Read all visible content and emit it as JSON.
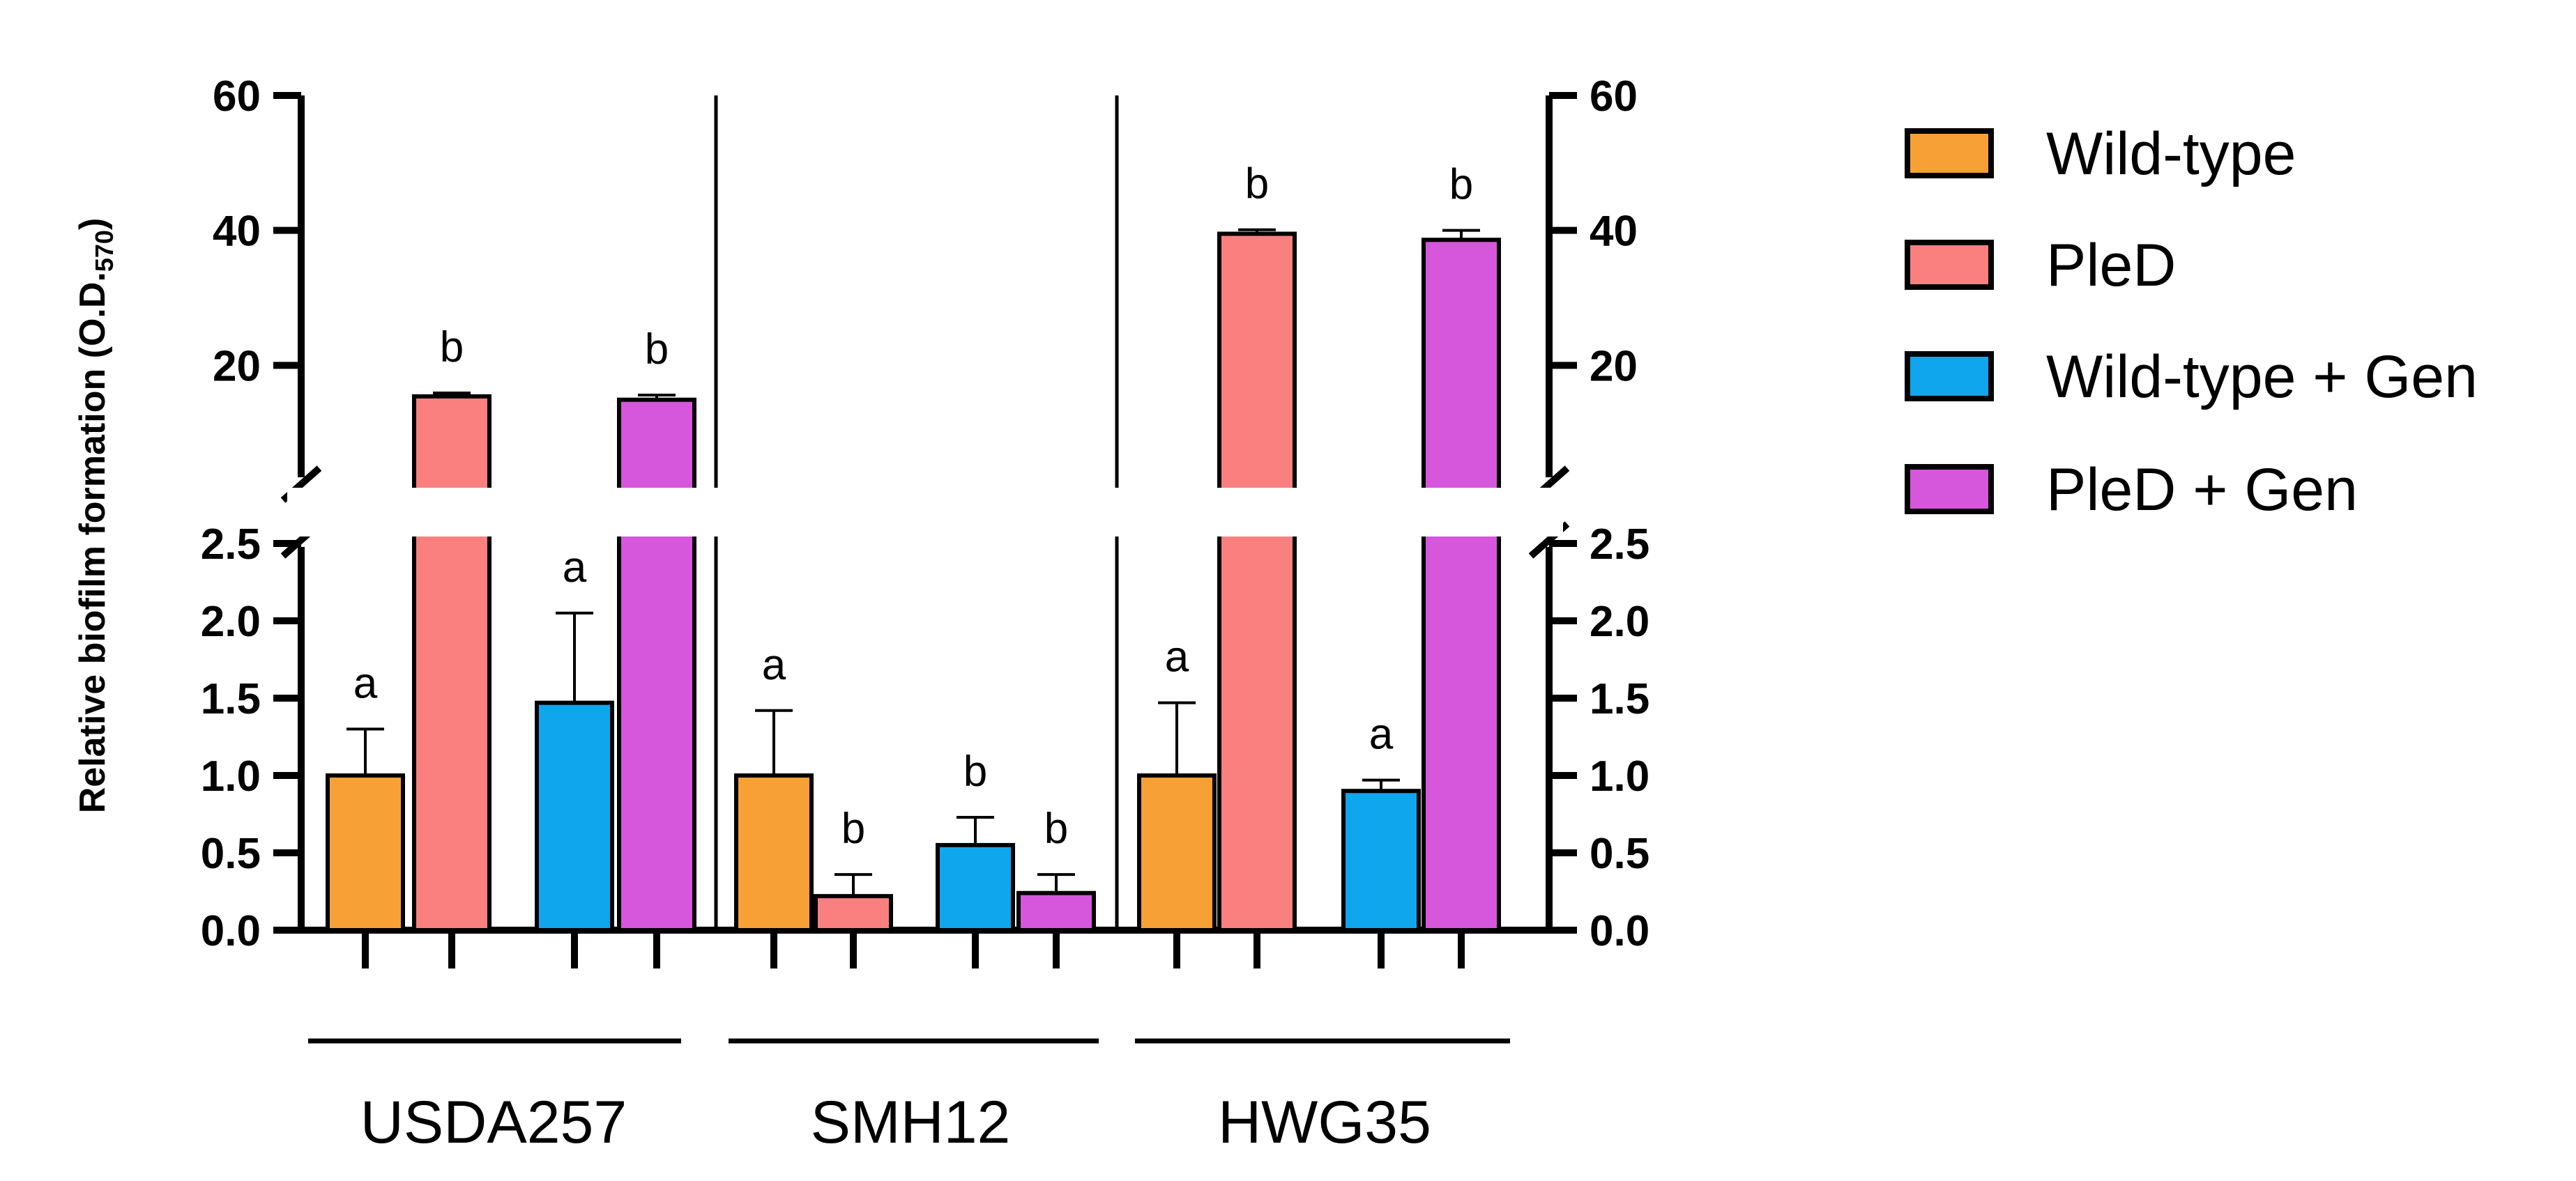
{
  "chart_data": {
    "type": "bar",
    "ylabel": "Relative biofilm formation (O.D.",
    "ylabel_subscript": "570",
    "ylabel_close": ")",
    "axis_break": true,
    "lower_segment": {
      "range": [
        0,
        2.5
      ],
      "ticks": [
        0.0,
        0.5,
        1.0,
        1.5,
        2.0,
        2.5
      ],
      "tick_labels": [
        "0.0",
        "0.5",
        "1.0",
        "1.5",
        "2.0",
        "2.5"
      ]
    },
    "upper_segment": {
      "range": [
        0,
        60
      ],
      "ticks": [
        20,
        40,
        60
      ],
      "tick_labels": [
        "20",
        "40",
        "60"
      ]
    },
    "mirrored_right_axis": true,
    "groups": [
      "USDA257",
      "SMH12",
      "HWG35"
    ],
    "series": [
      {
        "name": "Wild-type",
        "color": "#F7A035",
        "values": [
          1.0,
          1.0,
          1.0
        ],
        "errors": [
          0.3,
          0.42,
          0.47
        ],
        "letters": [
          "a",
          "a",
          "a"
        ]
      },
      {
        "name": "PleD",
        "color": "#FA8080",
        "values": [
          15.4,
          0.22,
          39.5
        ],
        "errors": [
          0.5,
          0.14,
          0.6
        ],
        "letters": [
          "b",
          "b",
          "b"
        ]
      },
      {
        "name": "Wild-type + Gen",
        "color": "#0FA6EE",
        "values": [
          1.47,
          0.55,
          0.9
        ],
        "errors": [
          0.58,
          0.18,
          0.07
        ],
        "letters": [
          "a",
          "b",
          "a"
        ]
      },
      {
        "name": "PleD + Gen",
        "color": "#D656DC",
        "values": [
          14.9,
          0.24,
          38.6
        ],
        "errors": [
          0.7,
          0.12,
          1.4
        ],
        "letters": [
          "b",
          "b",
          "b"
        ]
      }
    ],
    "legend": {
      "position": "right",
      "entries": [
        "Wild-type",
        "PleD",
        "Wild-type + Gen",
        "PleD + Gen"
      ]
    }
  }
}
